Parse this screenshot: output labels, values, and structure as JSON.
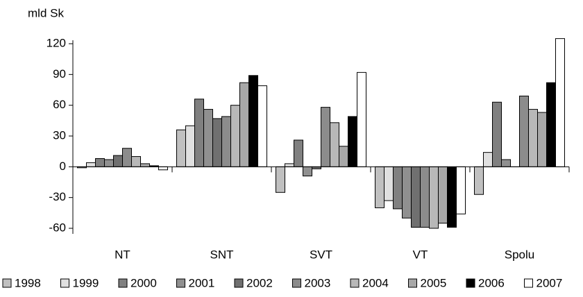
{
  "chart_data": {
    "type": "bar",
    "y_label": "mld Sk",
    "categories": [
      "NT",
      "SNT",
      "SVT",
      "VT",
      "Spolu"
    ],
    "series": [
      {
        "name": "1998",
        "color": "#c0c0c0",
        "values": [
          -1,
          36,
          -25,
          -40,
          -27
        ]
      },
      {
        "name": "1999",
        "color": "#e0e0e0",
        "values": [
          4,
          40,
          3,
          -33,
          14
        ]
      },
      {
        "name": "2000",
        "color": "#808080",
        "values": [
          8,
          66,
          26,
          -41,
          63
        ]
      },
      {
        "name": "2001",
        "color": "#909090",
        "values": [
          7,
          56,
          -9,
          -50,
          7
        ]
      },
      {
        "name": "2002",
        "color": "#707070",
        "values": [
          11,
          47,
          -2,
          -59,
          0
        ]
      },
      {
        "name": "2003",
        "color": "#8c8c8c",
        "values": [
          18,
          49,
          58,
          -59,
          69
        ]
      },
      {
        "name": "2004",
        "color": "#b8b8b8",
        "values": [
          10,
          60,
          43,
          -60,
          56
        ]
      },
      {
        "name": "2005",
        "color": "#a8a8a8",
        "values": [
          3,
          82,
          20,
          -55,
          53
        ]
      },
      {
        "name": "2006",
        "color": "#000000",
        "values": [
          1,
          89,
          49,
          -59,
          82
        ]
      },
      {
        "name": "2007",
        "color": "#ffffff",
        "values": [
          -3,
          79,
          92,
          -46,
          125
        ]
      }
    ],
    "ylim": [
      -60,
      120
    ],
    "yticks": [
      -60,
      -30,
      0,
      30,
      60,
      90,
      120
    ]
  }
}
